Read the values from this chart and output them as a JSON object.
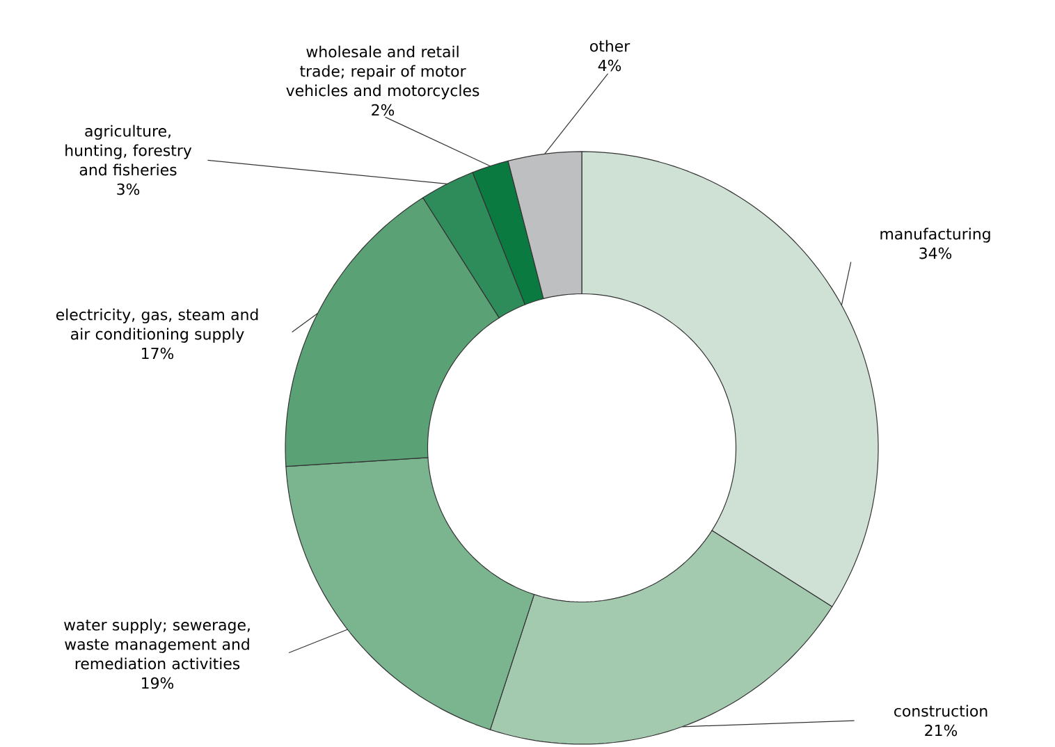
{
  "chart_data": {
    "type": "donut",
    "categories": [
      "manufacturing",
      "construction",
      "water supply; sewerage, waste management and remediation activities",
      "electricity, gas, steam and air conditioning supply",
      "agriculture, hunting, forestry and fisheries",
      "wholesale and retail trade; repair of motor vehicles and motorcycles",
      "other"
    ],
    "values": [
      34,
      21,
      19,
      17,
      3,
      2,
      4
    ],
    "value_labels": [
      "34%",
      "21%",
      "19%",
      "17%",
      "3%",
      "2%",
      "4%"
    ],
    "colors": [
      "#cfe1d5",
      "#a3c9af",
      "#7ab58f",
      "#5aa275",
      "#2e8b5a",
      "#0b7a40",
      "#bebfc1"
    ]
  }
}
